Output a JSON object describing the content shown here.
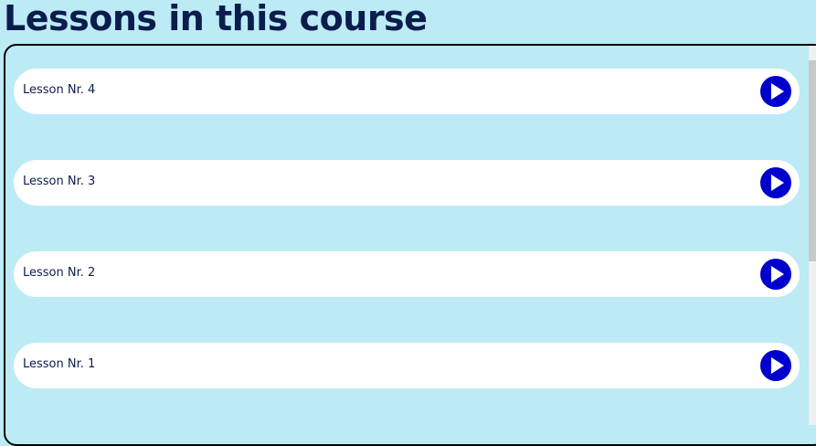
{
  "header": {
    "title": "Lessons in this course"
  },
  "lessons": [
    {
      "label": "Lesson Nr. 4"
    },
    {
      "label": "Lesson Nr. 3"
    },
    {
      "label": "Lesson Nr. 2"
    },
    {
      "label": "Lesson Nr. 1"
    }
  ]
}
